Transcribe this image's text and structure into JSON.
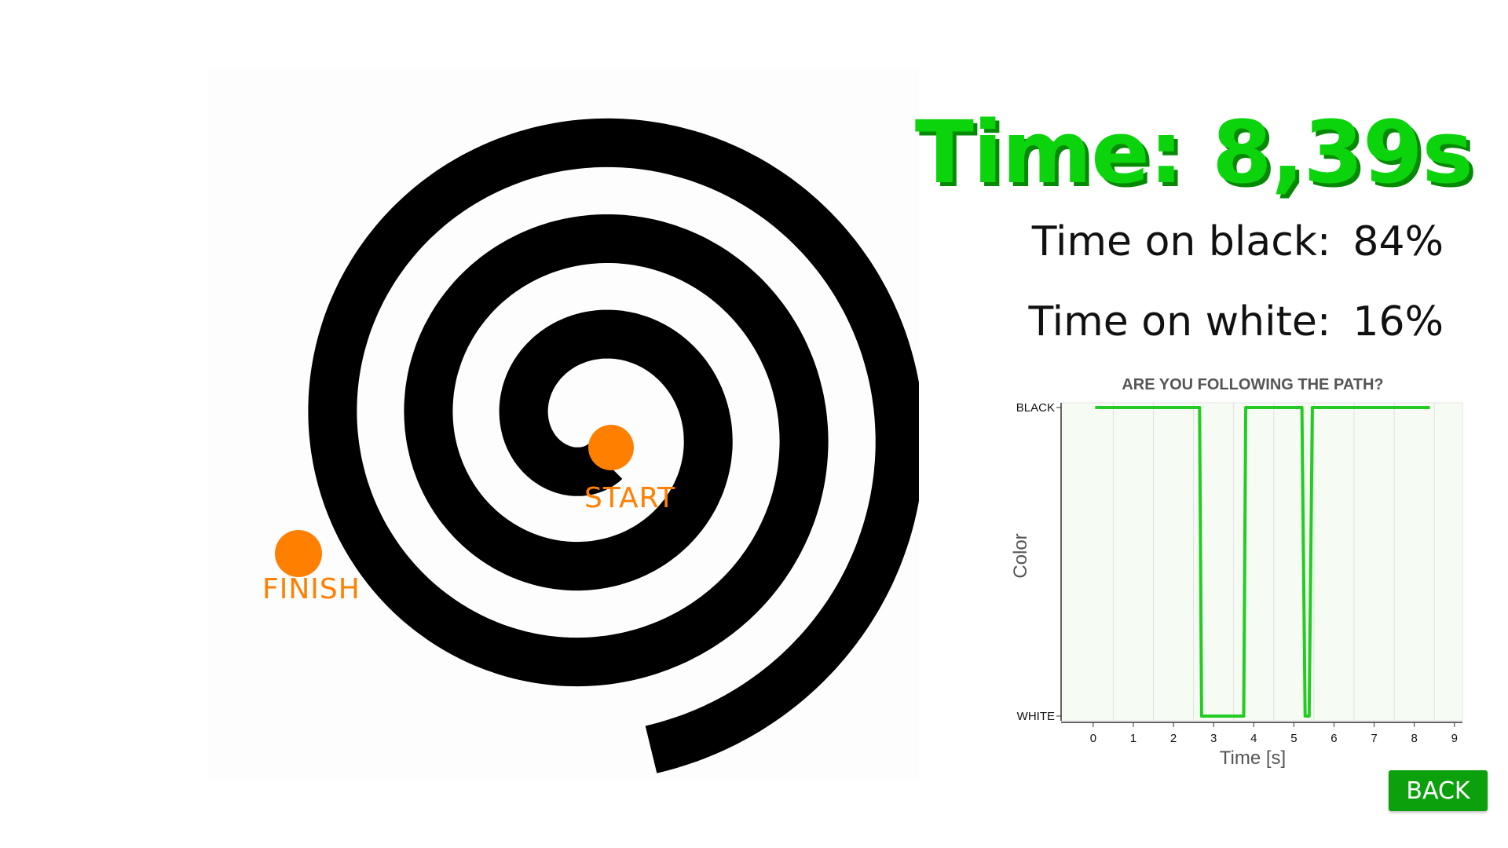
{
  "spiral": {
    "start_label": "START",
    "finish_label": "FINISH"
  },
  "results": {
    "time_text": "Time: 8,39s",
    "black_label": "Time on black:",
    "black_value": "84%",
    "white_label": "Time on white:",
    "white_value": "16%"
  },
  "chart_data": {
    "type": "line",
    "title": "ARE YOU FOLLOWING THE PATH?",
    "xlabel": "Time [s]",
    "ylabel": "Color",
    "xlim": [
      -0.8,
      9.2
    ],
    "x_ticks": [
      0,
      1,
      2,
      3,
      4,
      5,
      6,
      7,
      8,
      9
    ],
    "y_categories": [
      "WHITE",
      "BLACK"
    ],
    "grid": true,
    "series": [
      {
        "color": "#22cc22",
        "x": [
          0.05,
          2.65,
          2.7,
          3.75,
          3.8,
          5.2,
          5.28,
          5.38,
          5.46,
          8.39
        ],
        "y": [
          "BLACK",
          "BLACK",
          "WHITE",
          "WHITE",
          "BLACK",
          "BLACK",
          "WHITE",
          "WHITE",
          "BLACK",
          "BLACK"
        ]
      }
    ]
  },
  "buttons": {
    "back_label": "BACK"
  },
  "colors": {
    "accent_green": "#0cd40c",
    "marker_orange": "#ff8000",
    "button_green": "#0ca10c"
  }
}
